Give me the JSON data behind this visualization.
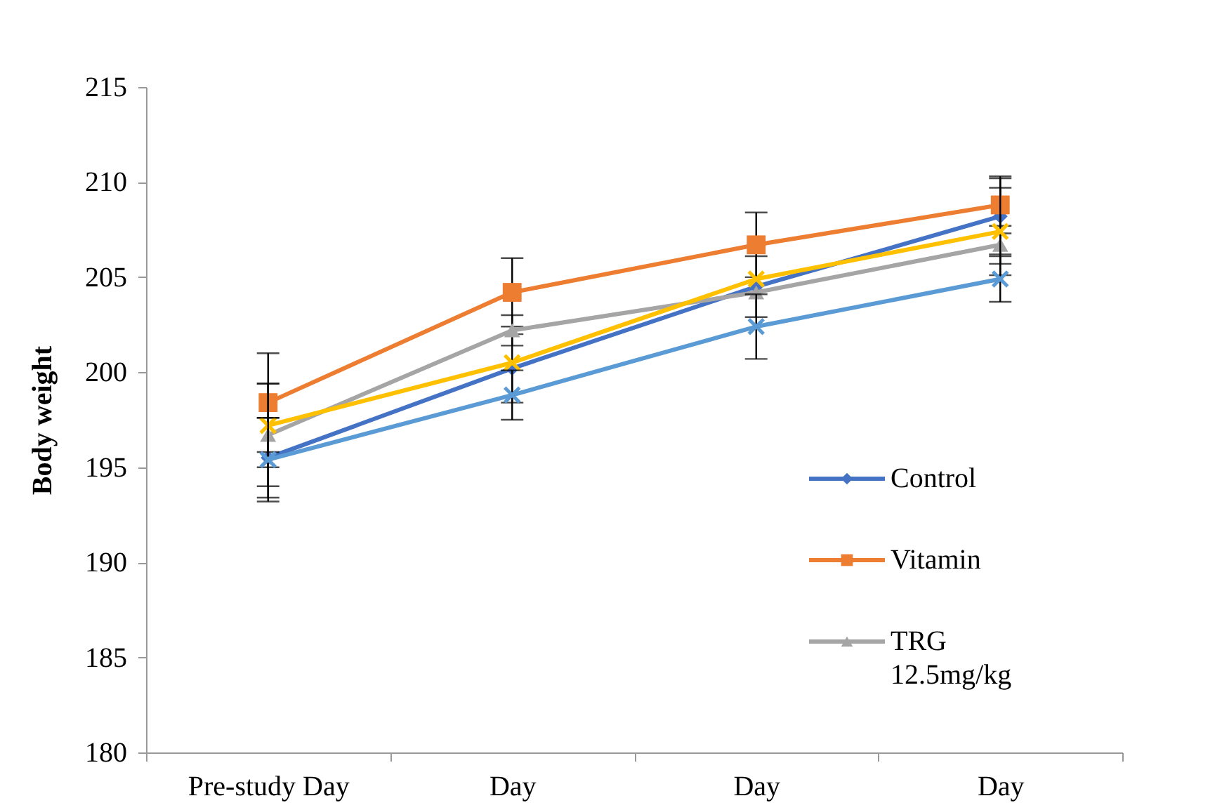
{
  "chart_data": {
    "type": "line",
    "ylabel": "Body weight",
    "categories": [
      "Pre-study Day",
      "Day",
      "Day",
      "Day"
    ],
    "ylim": [
      180,
      215
    ],
    "yticks": [
      180,
      185,
      190,
      195,
      200,
      205,
      210,
      215
    ],
    "legend": "bottom right",
    "series": [
      {
        "name": "Control",
        "color": "#4472c4",
        "marker": "diamond",
        "values": [
          195.5,
          200.2,
          204.5,
          208.2
        ],
        "errors": [
          2.1,
          1.8,
          1.6,
          2.0
        ]
      },
      {
        "name": "Vitamin",
        "color": "#ed7d31",
        "marker": "square",
        "values": [
          198.4,
          204.2,
          206.7,
          208.8
        ],
        "errors": [
          2.6,
          1.8,
          1.7,
          1.5
        ]
      },
      {
        "name": "TRG 12.5mg/kg",
        "color": "#a5a5a5",
        "marker": "triangle",
        "values": [
          196.7,
          202.2,
          204.2,
          206.7
        ],
        "errors": [
          2.7,
          0.8,
          null,
          1.0
        ]
      },
      {
        "color": "#ffc000",
        "marker": "cross",
        "values": [
          197.2,
          200.5,
          204.9,
          207.4
        ],
        "errors": [
          2.2,
          null,
          null,
          2.3
        ]
      },
      {
        "color": "#5b9bd5",
        "marker": "cross",
        "values": [
          195.4,
          198.8,
          202.4,
          204.9
        ],
        "errors": [
          2.2,
          1.3,
          1.7,
          1.2
        ]
      }
    ]
  }
}
